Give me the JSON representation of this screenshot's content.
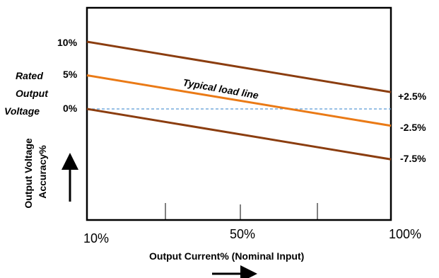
{
  "chart_data": {
    "type": "line",
    "title": "",
    "xlabel": "Output Current% (Nominal Input)",
    "ylabel": "Output Voltage Accuracy%",
    "side_label": [
      "Rated",
      "Output",
      "Voltage"
    ],
    "x_ticks": [
      "10%",
      "50%",
      "100%"
    ],
    "y_ticks_left": [
      "10%",
      "5%",
      "0%"
    ],
    "y_ticks_right": [
      "+2.5%",
      "-2.5%",
      "-7.5%"
    ],
    "annotation": "Typical load line",
    "xlim": [
      10,
      100
    ],
    "ylim": [
      -15,
      15
    ],
    "grid": false,
    "reference_line": {
      "y": 0,
      "color": "#5b9bd5",
      "style": "dashed"
    },
    "series": [
      {
        "x": [
          10,
          100
        ],
        "y": [
          10,
          2.5
        ],
        "color": "#8b3d0f"
      },
      {
        "x": [
          10,
          100
        ],
        "y": [
          5,
          -2.5
        ],
        "color": "#ea7a16"
      },
      {
        "x": [
          10,
          100
        ],
        "y": [
          0,
          -7.5
        ],
        "color": "#8b3d0f"
      }
    ],
    "colors": {
      "axis": "#000000",
      "dashed": "#5b9bd5"
    }
  }
}
